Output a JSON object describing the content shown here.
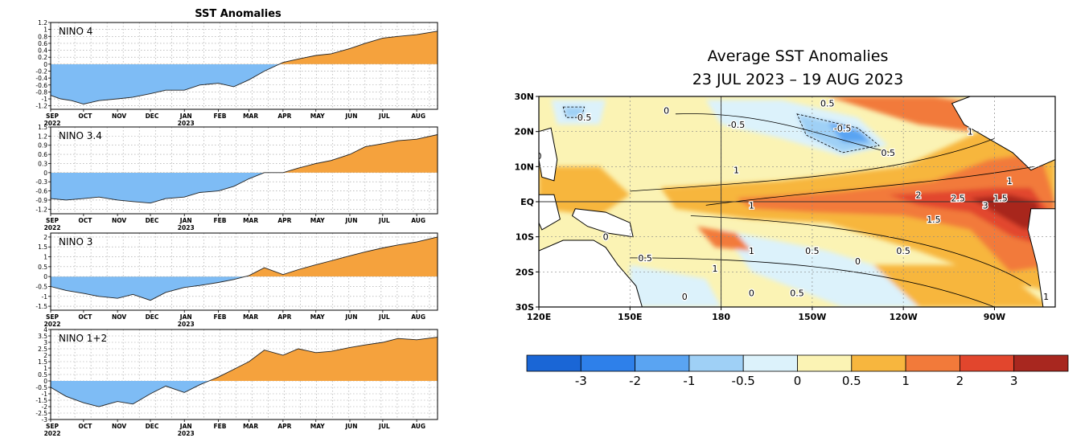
{
  "chart_data": [
    {
      "type": "area",
      "title": "SST Anomalies",
      "panel_label": "NINO 4",
      "x_start": "2022-09-01",
      "x_end": "2023-08-20",
      "ylim": [
        -1.3,
        1.2
      ],
      "yticks": [
        "1.2",
        "1",
        "0.8",
        "0.6",
        "0.4",
        "0.2",
        "0",
        "-0.2",
        "-0.4",
        "-0.6",
        "-0.8",
        "-1",
        "-1.2"
      ],
      "x_tick_labels": [
        "SEP",
        "OCT",
        "NOV",
        "DEC",
        "JAN",
        "FEB",
        "MAR",
        "APR",
        "MAY",
        "JUN",
        "JUL",
        "AUG"
      ],
      "x_year_labels": [
        "2022",
        "2023"
      ],
      "grid": true,
      "colors": {
        "positive": "#f5a23d",
        "negative": "#7ebcf5"
      },
      "series": [
        {
          "x": [
            "2022-09-01",
            "2022-09-10",
            "2022-09-20",
            "2022-10-01",
            "2022-10-15",
            "2022-11-01",
            "2022-11-15",
            "2022-12-01",
            "2022-12-15",
            "2023-01-01",
            "2023-01-15",
            "2023-02-01",
            "2023-02-15",
            "2023-03-01",
            "2023-03-15",
            "2023-04-01",
            "2023-04-15",
            "2023-05-01",
            "2023-05-15",
            "2023-06-01",
            "2023-06-15",
            "2023-07-01",
            "2023-07-15",
            "2023-08-01",
            "2023-08-20"
          ],
          "y": [
            -0.9,
            -1.0,
            -1.05,
            -1.15,
            -1.05,
            -1.0,
            -0.95,
            -0.85,
            -0.75,
            -0.75,
            -0.6,
            -0.55,
            -0.65,
            -0.45,
            -0.2,
            0.05,
            0.15,
            0.25,
            0.3,
            0.45,
            0.6,
            0.75,
            0.8,
            0.85,
            0.95
          ]
        }
      ]
    },
    {
      "type": "area",
      "panel_label": "NINO 3.4",
      "x_start": "2022-09-01",
      "x_end": "2023-08-20",
      "ylim": [
        -1.35,
        1.5
      ],
      "yticks": [
        "1.5",
        "1.2",
        "0.9",
        "0.6",
        "0.3",
        "0",
        "-0.3",
        "-0.6",
        "-0.9",
        "-1.2"
      ],
      "x_tick_labels": [
        "SEP",
        "OCT",
        "NOV",
        "DEC",
        "JAN",
        "FEB",
        "MAR",
        "APR",
        "MAY",
        "JUN",
        "JUL",
        "AUG"
      ],
      "x_year_labels": [
        "2022",
        "2023"
      ],
      "grid": true,
      "colors": {
        "positive": "#f5a23d",
        "negative": "#7ebcf5"
      },
      "series": [
        {
          "x": [
            "2022-09-01",
            "2022-09-15",
            "2022-10-01",
            "2022-10-15",
            "2022-11-01",
            "2022-11-15",
            "2022-12-01",
            "2022-12-15",
            "2023-01-01",
            "2023-01-15",
            "2023-02-01",
            "2023-02-15",
            "2023-03-01",
            "2023-03-15",
            "2023-04-01",
            "2023-04-15",
            "2023-05-01",
            "2023-05-15",
            "2023-06-01",
            "2023-06-15",
            "2023-07-01",
            "2023-07-15",
            "2023-08-01",
            "2023-08-20"
          ],
          "y": [
            -0.85,
            -0.9,
            -0.85,
            -0.8,
            -0.9,
            -0.95,
            -1.0,
            -0.85,
            -0.8,
            -0.65,
            -0.6,
            -0.45,
            -0.2,
            0.0,
            0.0,
            0.15,
            0.3,
            0.4,
            0.6,
            0.85,
            0.95,
            1.05,
            1.1,
            1.25
          ]
        }
      ]
    },
    {
      "type": "area",
      "panel_label": "NINO 3",
      "x_start": "2022-09-01",
      "x_end": "2023-08-20",
      "ylim": [
        -1.7,
        2.2
      ],
      "yticks": [
        "2",
        "1.5",
        "1",
        "0.5",
        "0",
        "-0.5",
        "-1",
        "-1.5"
      ],
      "x_tick_labels": [
        "SEP",
        "OCT",
        "NOV",
        "DEC",
        "JAN",
        "FEB",
        "MAR",
        "APR",
        "MAY",
        "JUN",
        "JUL",
        "AUG"
      ],
      "x_year_labels": [
        "2022",
        "2023"
      ],
      "grid": true,
      "colors": {
        "positive": "#f5a23d",
        "negative": "#7ebcf5"
      },
      "series": [
        {
          "x": [
            "2022-09-01",
            "2022-09-15",
            "2022-10-01",
            "2022-10-15",
            "2022-11-01",
            "2022-11-15",
            "2022-12-01",
            "2022-12-15",
            "2023-01-01",
            "2023-01-15",
            "2023-02-01",
            "2023-02-15",
            "2023-03-01",
            "2023-03-15",
            "2023-04-01",
            "2023-04-15",
            "2023-05-01",
            "2023-05-15",
            "2023-06-01",
            "2023-06-15",
            "2023-07-01",
            "2023-07-15",
            "2023-08-01",
            "2023-08-20"
          ],
          "y": [
            -0.5,
            -0.7,
            -0.85,
            -1.0,
            -1.1,
            -0.9,
            -1.2,
            -0.8,
            -0.55,
            -0.45,
            -0.3,
            -0.15,
            0.05,
            0.45,
            0.1,
            0.35,
            0.6,
            0.8,
            1.05,
            1.25,
            1.45,
            1.6,
            1.75,
            2.0
          ]
        }
      ]
    },
    {
      "type": "area",
      "panel_label": "NINO 1+2",
      "x_start": "2022-09-01",
      "x_end": "2023-08-20",
      "ylim": [
        -3,
        4
      ],
      "yticks": [
        "4",
        "3.5",
        "3",
        "2.5",
        "2",
        "1.5",
        "1",
        "0.5",
        "0",
        "-0.5",
        "-1",
        "-1.5",
        "-2",
        "-2.5",
        "-3"
      ],
      "x_tick_labels": [
        "SEP",
        "OCT",
        "NOV",
        "DEC",
        "JAN",
        "FEB",
        "MAR",
        "APR",
        "MAY",
        "JUN",
        "JUL",
        "AUG"
      ],
      "x_year_labels": [
        "2022",
        "2023"
      ],
      "grid": true,
      "colors": {
        "positive": "#f5a23d",
        "negative": "#7ebcf5"
      },
      "series": [
        {
          "x": [
            "2022-09-01",
            "2022-09-15",
            "2022-10-01",
            "2022-10-15",
            "2022-11-01",
            "2022-11-15",
            "2022-12-01",
            "2022-12-15",
            "2023-01-01",
            "2023-01-15",
            "2023-02-01",
            "2023-02-15",
            "2023-03-01",
            "2023-03-15",
            "2023-04-01",
            "2023-04-15",
            "2023-05-01",
            "2023-05-15",
            "2023-06-01",
            "2023-06-15",
            "2023-07-01",
            "2023-07-15",
            "2023-08-01",
            "2023-08-20"
          ],
          "y": [
            -0.5,
            -1.2,
            -1.7,
            -2.0,
            -1.6,
            -1.8,
            -1.0,
            -0.4,
            -0.9,
            -0.3,
            0.3,
            0.9,
            1.5,
            2.4,
            2.0,
            2.5,
            2.2,
            2.3,
            2.6,
            2.8,
            3.0,
            3.3,
            3.2,
            3.4
          ]
        }
      ]
    },
    {
      "type": "heatmap",
      "title": "Average SST Anomalies",
      "subtitle": "23 JUL 2023 – 19 AUG 2023",
      "lon_range": [
        120,
        290
      ],
      "lat_range": [
        -30,
        30
      ],
      "x_tick_labels": [
        "120E",
        "150E",
        "180",
        "150W",
        "120W",
        "90W"
      ],
      "y_tick_labels": [
        "30N",
        "20N",
        "10N",
        "EQ",
        "10S",
        "20S",
        "30S"
      ],
      "colorbar": {
        "levels": [
          "-3",
          "-2",
          "-1",
          "-0.5",
          "0",
          "0.5",
          "1",
          "2",
          "3"
        ],
        "colors": [
          "#1a66d6",
          "#2e80ea",
          "#5aa4f2",
          "#9fd0f6",
          "#dcf2fb",
          "#fbf3b4",
          "#f7b63e",
          "#f27a3a",
          "#e2462d",
          "#a8271f"
        ]
      },
      "contour_labels": [
        "0.5",
        "0.5",
        "-0.5",
        "0",
        "0",
        "0",
        "-0.5",
        "1",
        "0.5",
        "1",
        "1",
        "2",
        "2.5",
        "1.5",
        "3",
        "1",
        "1.5",
        "1",
        "0.5",
        "0.5",
        "0.5",
        "1",
        "0",
        "0.5",
        "0",
        "0",
        "1"
      ]
    }
  ]
}
